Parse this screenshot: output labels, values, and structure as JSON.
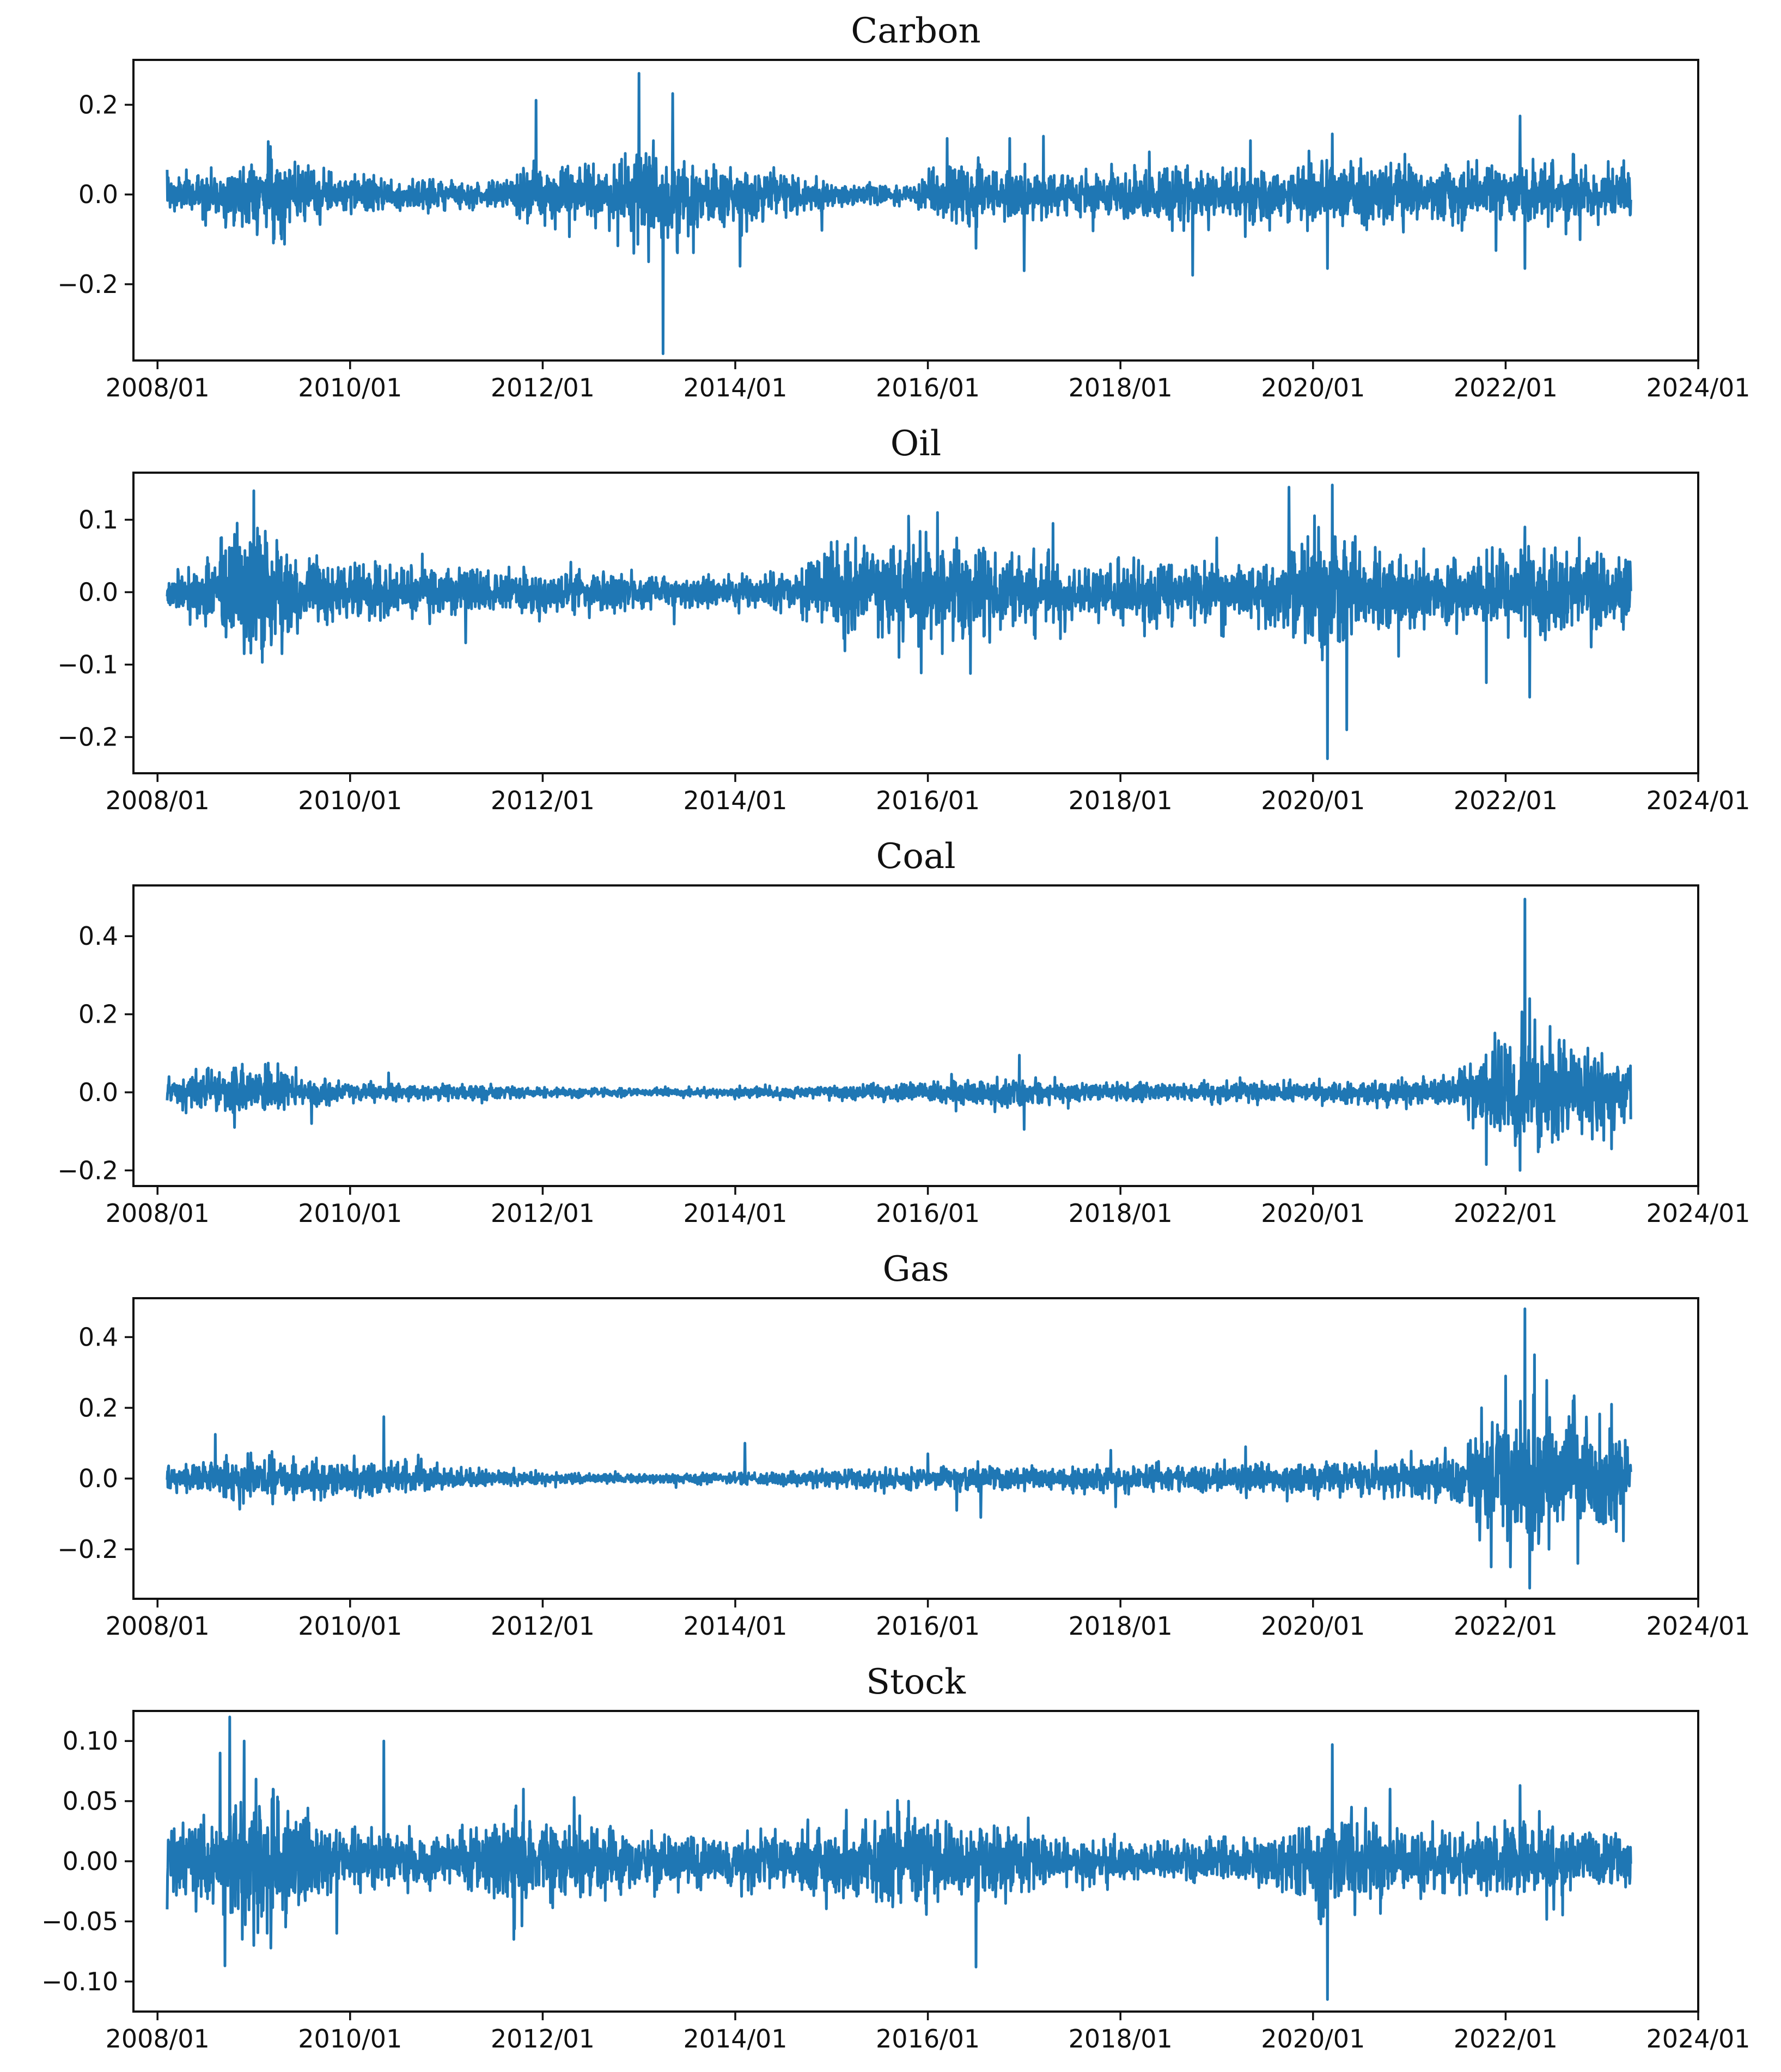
{
  "colors": {
    "series": "#1f77b4",
    "axes": "#111111",
    "background": "#ffffff"
  },
  "chart_data": [
    {
      "type": "line",
      "title": "Carbon",
      "xlabel": "",
      "ylabel": "",
      "x_ticks": [
        "2008/01",
        "2010/01",
        "2012/01",
        "2014/01",
        "2016/01",
        "2018/01",
        "2020/01",
        "2022/01",
        "2024/01"
      ],
      "x_range": [
        "2007-10-01",
        "2024-01-01"
      ],
      "y_ticks": [
        {
          "value": 0.2,
          "label": "0.2"
        },
        {
          "value": 0.0,
          "label": "0.0"
        },
        {
          "value": -0.2,
          "label": "−0.2"
        }
      ],
      "ylim": [
        -0.37,
        0.3
      ],
      "grid": false,
      "legend": "none",
      "series": [
        {
          "vol": [
            [
              2008.1,
              0.02
            ],
            [
              2008.9,
              0.03
            ],
            [
              2009.2,
              0.04
            ],
            [
              2009.6,
              0.024
            ],
            [
              2010.5,
              0.018
            ],
            [
              2011.5,
              0.012
            ],
            [
              2011.9,
              0.032
            ],
            [
              2012.7,
              0.032
            ],
            [
              2013.0,
              0.055
            ],
            [
              2013.5,
              0.04
            ],
            [
              2014.3,
              0.024
            ],
            [
              2015.0,
              0.014
            ],
            [
              2015.8,
              0.008
            ],
            [
              2016.1,
              0.028
            ],
            [
              2016.5,
              0.032
            ],
            [
              2017.5,
              0.024
            ],
            [
              2018.5,
              0.03
            ],
            [
              2019.5,
              0.03
            ],
            [
              2020.5,
              0.032
            ],
            [
              2021.5,
              0.03
            ],
            [
              2023.3,
              0.026
            ]
          ],
          "spikes": [
            [
              2008.1,
              0.055
            ],
            [
              2009.15,
              0.118
            ],
            [
              2011.93,
              0.21
            ],
            [
              2012.55,
              -0.075
            ],
            [
              2013.0,
              0.27
            ],
            [
              2013.1,
              -0.15
            ],
            [
              2013.15,
              0.12
            ],
            [
              2013.25,
              -0.355
            ],
            [
              2013.35,
              0.225
            ],
            [
              2013.4,
              -0.13
            ],
            [
              2014.05,
              -0.16
            ],
            [
              2014.9,
              -0.08
            ],
            [
              2016.2,
              0.125
            ],
            [
              2016.5,
              -0.12
            ],
            [
              2016.85,
              0.125
            ],
            [
              2017.0,
              -0.17
            ],
            [
              2017.2,
              0.13
            ],
            [
              2018.3,
              0.095
            ],
            [
              2018.75,
              -0.18
            ],
            [
              2019.35,
              0.12
            ],
            [
              2019.55,
              -0.08
            ],
            [
              2020.2,
              0.135
            ],
            [
              2020.15,
              -0.165
            ],
            [
              2021.9,
              -0.125
            ],
            [
              2022.15,
              0.175
            ],
            [
              2022.2,
              -0.165
            ],
            [
              2022.7,
              0.09
            ]
          ]
        }
      ]
    },
    {
      "type": "line",
      "title": "Oil",
      "xlabel": "",
      "ylabel": "",
      "x_ticks": [
        "2008/01",
        "2010/01",
        "2012/01",
        "2014/01",
        "2016/01",
        "2018/01",
        "2020/01",
        "2022/01",
        "2024/01"
      ],
      "x_range": [
        "2007-10-01",
        "2024-01-01"
      ],
      "y_ticks": [
        {
          "value": 0.1,
          "label": "0.1"
        },
        {
          "value": 0.0,
          "label": "0.0"
        },
        {
          "value": -0.1,
          "label": "−0.1"
        },
        {
          "value": -0.2,
          "label": "−0.2"
        }
      ],
      "ylim": [
        -0.25,
        0.165
      ],
      "grid": false,
      "legend": "none",
      "series": [
        {
          "vol": [
            [
              2008.1,
              0.014
            ],
            [
              2008.6,
              0.024
            ],
            [
              2008.9,
              0.045
            ],
            [
              2009.2,
              0.04
            ],
            [
              2009.5,
              0.022
            ],
            [
              2010.0,
              0.018
            ],
            [
              2011.0,
              0.016
            ],
            [
              2012.0,
              0.014
            ],
            [
              2013.0,
              0.01
            ],
            [
              2014.0,
              0.01
            ],
            [
              2014.6,
              0.012
            ],
            [
              2015.0,
              0.028
            ],
            [
              2016.0,
              0.034
            ],
            [
              2016.6,
              0.026
            ],
            [
              2017.5,
              0.018
            ],
            [
              2018.5,
              0.02
            ],
            [
              2019.5,
              0.02
            ],
            [
              2020.2,
              0.045
            ],
            [
              2020.6,
              0.028
            ],
            [
              2021.5,
              0.02
            ],
            [
              2022.3,
              0.03
            ],
            [
              2023.3,
              0.024
            ]
          ],
          "spikes": [
            [
              2008.8,
              0.08
            ],
            [
              2008.9,
              -0.085
            ],
            [
              2009.0,
              0.14
            ],
            [
              2009.1,
              -0.075
            ],
            [
              2011.2,
              -0.07
            ],
            [
              2015.25,
              0.075
            ],
            [
              2015.7,
              -0.09
            ],
            [
              2015.8,
              0.105
            ],
            [
              2016.1,
              0.11
            ],
            [
              2016.15,
              -0.085
            ],
            [
              2016.3,
              0.075
            ],
            [
              2017.1,
              0.06
            ],
            [
              2017.3,
              0.095
            ],
            [
              2019.0,
              0.075
            ],
            [
              2019.05,
              -0.06
            ],
            [
              2019.75,
              0.145
            ],
            [
              2020.15,
              -0.23
            ],
            [
              2020.2,
              0.148
            ],
            [
              2020.35,
              -0.19
            ],
            [
              2021.15,
              0.06
            ],
            [
              2021.8,
              -0.125
            ],
            [
              2022.2,
              0.09
            ],
            [
              2022.25,
              -0.145
            ]
          ]
        }
      ]
    },
    {
      "type": "line",
      "title": "Coal",
      "xlabel": "",
      "ylabel": "",
      "x_ticks": [
        "2008/01",
        "2010/01",
        "2012/01",
        "2014/01",
        "2016/01",
        "2018/01",
        "2020/01",
        "2022/01",
        "2024/01"
      ],
      "x_range": [
        "2007-10-01",
        "2024-01-01"
      ],
      "y_ticks": [
        {
          "value": 0.4,
          "label": "0.4"
        },
        {
          "value": 0.2,
          "label": "0.2"
        },
        {
          "value": 0.0,
          "label": "0.0"
        },
        {
          "value": -0.2,
          "label": "−0.2"
        }
      ],
      "ylim": [
        -0.24,
        0.53
      ],
      "grid": false,
      "legend": "none",
      "series": [
        {
          "vol": [
            [
              2008.1,
              0.015
            ],
            [
              2008.8,
              0.028
            ],
            [
              2009.3,
              0.024
            ],
            [
              2010.0,
              0.012
            ],
            [
              2011.0,
              0.01
            ],
            [
              2012.0,
              0.006
            ],
            [
              2013.0,
              0.005
            ],
            [
              2014.0,
              0.006
            ],
            [
              2015.0,
              0.008
            ],
            [
              2016.0,
              0.012
            ],
            [
              2016.8,
              0.018
            ],
            [
              2017.5,
              0.012
            ],
            [
              2018.5,
              0.011
            ],
            [
              2019.5,
              0.012
            ],
            [
              2020.5,
              0.013
            ],
            [
              2021.5,
              0.018
            ],
            [
              2021.9,
              0.06
            ],
            [
              2022.3,
              0.075
            ],
            [
              2023.3,
              0.04
            ]
          ],
          "spikes": [
            [
              2008.8,
              -0.09
            ],
            [
              2009.15,
              0.075
            ],
            [
              2009.6,
              -0.08
            ],
            [
              2010.4,
              0.05
            ],
            [
              2016.95,
              0.095
            ],
            [
              2017.0,
              -0.095
            ],
            [
              2021.8,
              -0.185
            ],
            [
              2022.0,
              0.11
            ],
            [
              2022.15,
              -0.2
            ],
            [
              2022.2,
              0.495
            ],
            [
              2022.25,
              0.24
            ],
            [
              2022.35,
              -0.14
            ],
            [
              2022.6,
              0.1
            ],
            [
              2022.9,
              -0.12
            ],
            [
              2023.0,
              0.1
            ],
            [
              2023.1,
              -0.145
            ]
          ]
        }
      ]
    },
    {
      "type": "line",
      "title": "Gas",
      "xlabel": "",
      "ylabel": "",
      "x_ticks": [
        "2008/01",
        "2010/01",
        "2012/01",
        "2014/01",
        "2016/01",
        "2018/01",
        "2020/01",
        "2022/01",
        "2024/01"
      ],
      "x_range": [
        "2007-10-01",
        "2024-01-01"
      ],
      "y_ticks": [
        {
          "value": 0.4,
          "label": "0.4"
        },
        {
          "value": 0.2,
          "label": "0.2"
        },
        {
          "value": 0.0,
          "label": "0.0"
        },
        {
          "value": -0.2,
          "label": "−0.2"
        }
      ],
      "ylim": [
        -0.34,
        0.51
      ],
      "grid": false,
      "legend": "none",
      "series": [
        {
          "vol": [
            [
              2008.1,
              0.016
            ],
            [
              2008.8,
              0.028
            ],
            [
              2009.3,
              0.026
            ],
            [
              2010.0,
              0.022
            ],
            [
              2010.5,
              0.022
            ],
            [
              2011.0,
              0.014
            ],
            [
              2012.0,
              0.008
            ],
            [
              2013.0,
              0.006
            ],
            [
              2014.0,
              0.008
            ],
            [
              2015.0,
              0.012
            ],
            [
              2016.0,
              0.014
            ],
            [
              2017.0,
              0.015
            ],
            [
              2018.0,
              0.016
            ],
            [
              2019.0,
              0.02
            ],
            [
              2020.0,
              0.022
            ],
            [
              2021.0,
              0.024
            ],
            [
              2021.5,
              0.035
            ],
            [
              2021.9,
              0.08
            ],
            [
              2022.3,
              0.1
            ],
            [
              2022.8,
              0.075
            ],
            [
              2023.3,
              0.05
            ]
          ],
          "spikes": [
            [
              2008.6,
              0.125
            ],
            [
              2010.35,
              0.175
            ],
            [
              2014.1,
              0.1
            ],
            [
              2016.0,
              0.07
            ],
            [
              2016.3,
              -0.09
            ],
            [
              2016.55,
              -0.11
            ],
            [
              2017.9,
              0.08
            ],
            [
              2017.95,
              -0.08
            ],
            [
              2019.3,
              0.09
            ],
            [
              2021.75,
              0.2
            ],
            [
              2021.85,
              -0.25
            ],
            [
              2022.0,
              0.29
            ],
            [
              2022.05,
              -0.25
            ],
            [
              2022.2,
              0.48
            ],
            [
              2022.25,
              -0.31
            ],
            [
              2022.3,
              0.35
            ],
            [
              2022.45,
              -0.2
            ],
            [
              2022.7,
              0.22
            ],
            [
              2022.75,
              -0.24
            ],
            [
              2023.1,
              0.21
            ],
            [
              2023.15,
              -0.15
            ]
          ]
        }
      ]
    },
    {
      "type": "line",
      "title": "Stock",
      "xlabel": "",
      "ylabel": "",
      "x_ticks": [
        "2008/01",
        "2010/01",
        "2012/01",
        "2014/01",
        "2016/01",
        "2018/01",
        "2020/01",
        "2022/01",
        "2024/01"
      ],
      "x_range": [
        "2007-10-01",
        "2024-01-01"
      ],
      "y_ticks": [
        {
          "value": 0.1,
          "label": "0.10"
        },
        {
          "value": 0.05,
          "label": "0.05"
        },
        {
          "value": 0.0,
          "label": "0.00"
        },
        {
          "value": -0.05,
          "label": "−0.05"
        },
        {
          "value": -0.1,
          "label": "−0.10"
        }
      ],
      "ylim": [
        -0.125,
        0.125
      ],
      "grid": false,
      "legend": "none",
      "series": [
        {
          "vol": [
            [
              2008.1,
              0.012
            ],
            [
              2008.7,
              0.02
            ],
            [
              2008.9,
              0.034
            ],
            [
              2009.3,
              0.024
            ],
            [
              2009.7,
              0.014
            ],
            [
              2010.3,
              0.012
            ],
            [
              2011.0,
              0.01
            ],
            [
              2011.7,
              0.02
            ],
            [
              2012.3,
              0.016
            ],
            [
              2013.0,
              0.011
            ],
            [
              2014.0,
              0.01
            ],
            [
              2015.0,
              0.013
            ],
            [
              2015.5,
              0.018
            ],
            [
              2016.0,
              0.017
            ],
            [
              2016.7,
              0.014
            ],
            [
              2017.5,
              0.007
            ],
            [
              2018.5,
              0.008
            ],
            [
              2019.5,
              0.009
            ],
            [
              2020.2,
              0.022
            ],
            [
              2020.6,
              0.014
            ],
            [
              2021.5,
              0.011
            ],
            [
              2022.2,
              0.014
            ],
            [
              2023.3,
              0.011
            ]
          ],
          "spikes": [
            [
              2008.1,
              -0.04
            ],
            [
              2008.65,
              0.09
            ],
            [
              2008.7,
              -0.087
            ],
            [
              2008.75,
              0.12
            ],
            [
              2008.9,
              0.1
            ],
            [
              2009.0,
              -0.07
            ],
            [
              2009.2,
              0.06
            ],
            [
              2010.35,
              0.1
            ],
            [
              2011.7,
              -0.065
            ],
            [
              2011.8,
              0.06
            ],
            [
              2015.8,
              0.05
            ],
            [
              2016.5,
              -0.088
            ],
            [
              2020.15,
              -0.115
            ],
            [
              2020.2,
              0.097
            ],
            [
              2020.4,
              0.045
            ],
            [
              2020.8,
              0.06
            ],
            [
              2022.15,
              0.063
            ],
            [
              2022.5,
              -0.04
            ]
          ]
        }
      ]
    }
  ]
}
